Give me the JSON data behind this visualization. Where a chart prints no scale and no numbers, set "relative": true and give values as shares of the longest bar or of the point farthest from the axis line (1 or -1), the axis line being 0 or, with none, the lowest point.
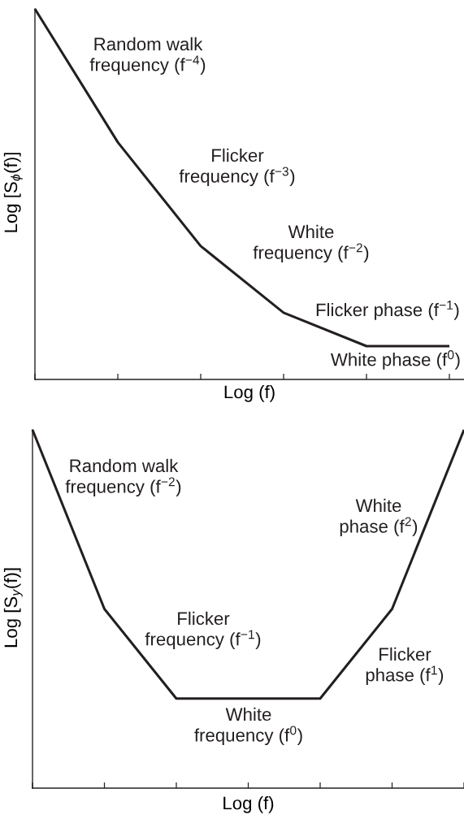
{
  "chart_data": [
    {
      "type": "line",
      "relative": true,
      "categories": [
        null,
        null,
        null,
        null,
        null,
        null
      ],
      "series": [
        {
          "color": "#231f20",
          "values": [
            1,
            0.64,
            0.36,
            0.18,
            0.09,
            0.09
          ]
        }
      ],
      "xlabel": "Log (f)",
      "ylabel": "Log [S$_{ϕ}$(f)]",
      "annotations": [
        "Random walk\nfrequency (f$^{−4}$)",
        "Flicker\nfrequency (f$^{−3}$)",
        "White\nfrequency (f$^{−2}$)",
        "Flicker phase (f$^{−1}$)",
        "White phase (f$^{0}$)"
      ]
    },
    {
      "type": "line",
      "relative": true,
      "categories": [
        null,
        null,
        null,
        null,
        null,
        null,
        null
      ],
      "series": [
        {
          "color": "#231f20",
          "values": [
            1,
            0.5,
            0.25,
            0.25,
            0.25,
            0.5,
            1
          ]
        }
      ],
      "xlabel": "Log (f)",
      "ylabel": "Log [S$_{y}$(f)]",
      "annotations": [
        "Random walk\nfrequency (f$^{−2}$)",
        "White\nphase (f$^{2}$)",
        "Flicker\nfrequency (f$^{−1}$)",
        "Flicker\nphase (f$^{1}$)",
        "White\nfrequency (f$^{0}$)"
      ]
    }
  ]
}
